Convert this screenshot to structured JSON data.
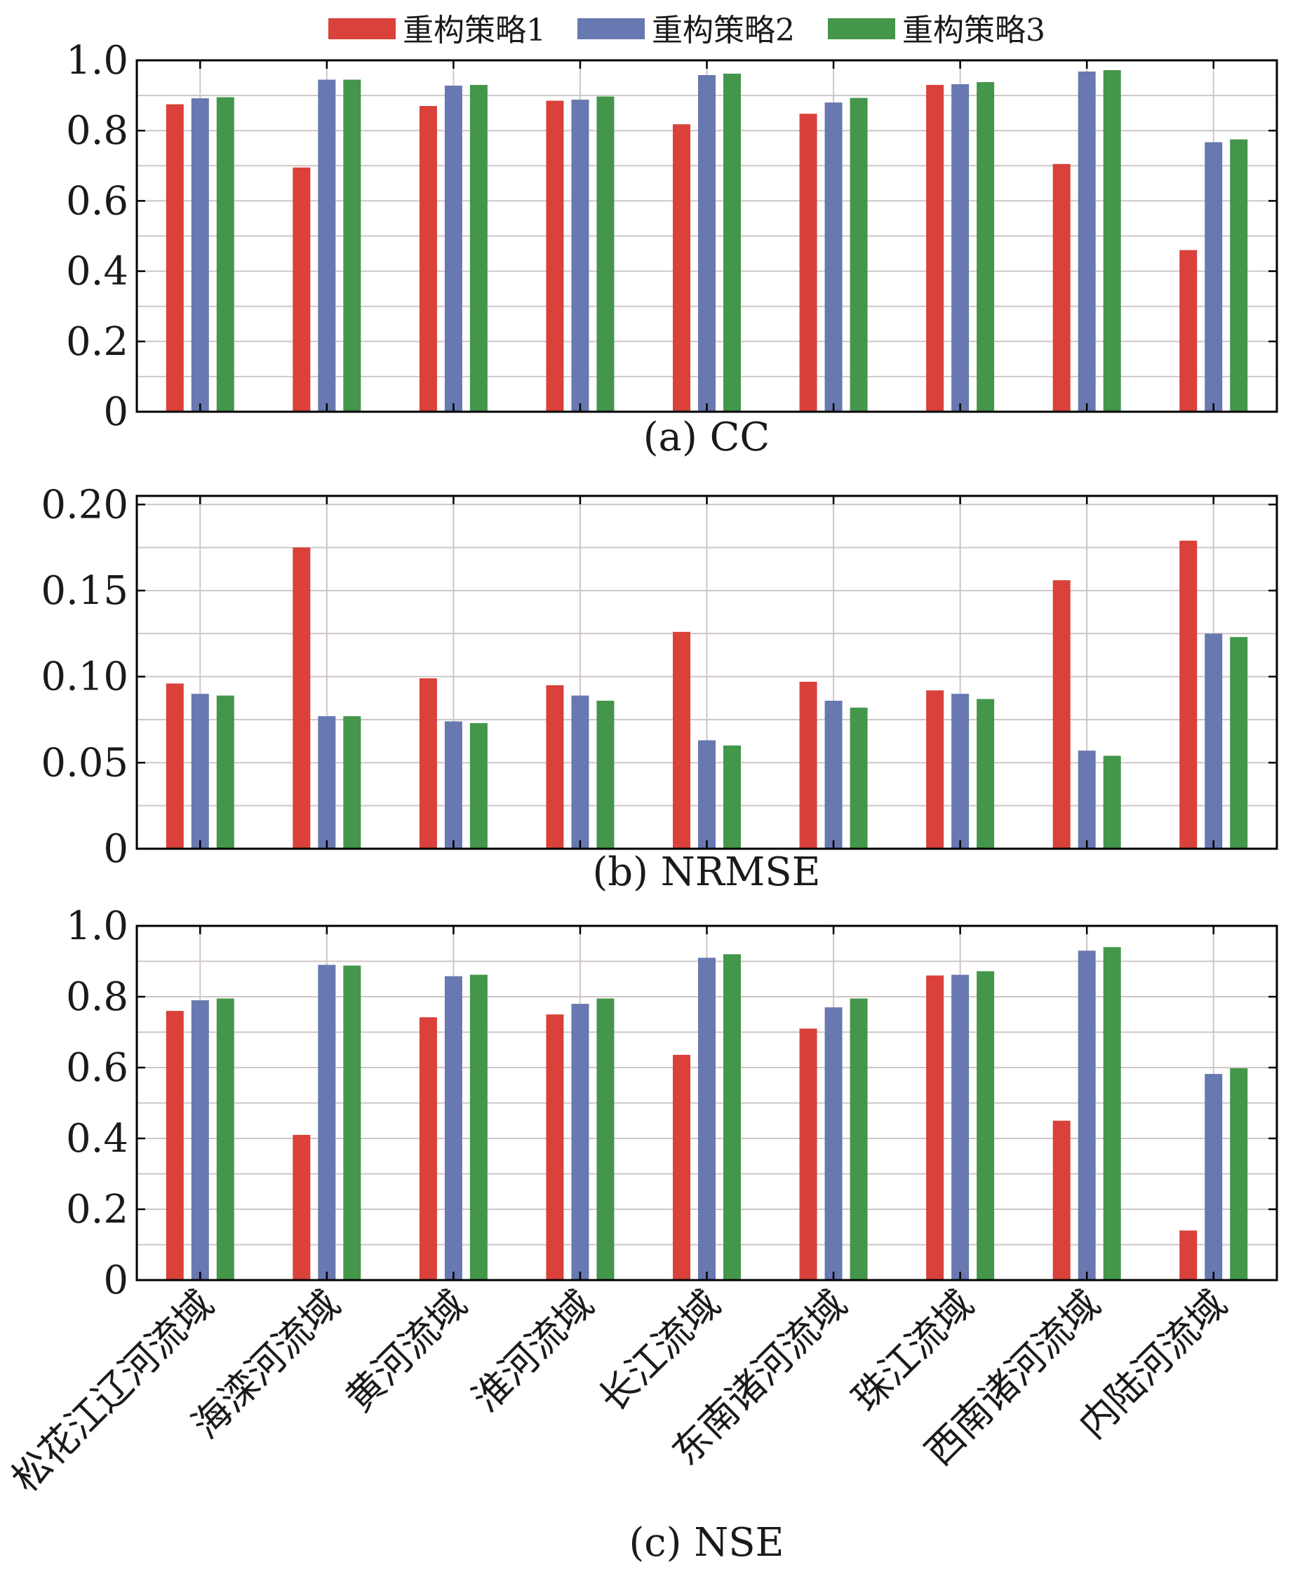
{
  "legend": {
    "items": [
      {
        "name": "重构策略1",
        "color": "#d9413a"
      },
      {
        "name": "重构策略2",
        "color": "#6878b0"
      },
      {
        "name": "重构策略3",
        "color": "#43964a"
      }
    ]
  },
  "chart_data": [
    {
      "type": "bar",
      "title": "(a) CC",
      "xlabel": "",
      "ylabel": "",
      "ylim": [
        0,
        1.0
      ],
      "yticks": [
        0,
        0.2,
        0.4,
        0.6,
        0.8,
        1.0
      ],
      "ytick_labels": [
        "0",
        "0.2",
        "0.4",
        "0.6",
        "0.8",
        "1.0"
      ],
      "grid": true,
      "categories": [
        "松花江辽河流域",
        "海滦河流域",
        "黄河流域",
        "淮河流域",
        "长江流域",
        "东南诸河流域",
        "珠江流域",
        "西南诸河流域",
        "内陆河流域"
      ],
      "series": [
        {
          "name": "重构策略1",
          "values": [
            0.875,
            0.695,
            0.87,
            0.885,
            0.818,
            0.848,
            0.93,
            0.705,
            0.46
          ]
        },
        {
          "name": "重构策略2",
          "values": [
            0.892,
            0.945,
            0.928,
            0.888,
            0.958,
            0.88,
            0.932,
            0.968,
            0.767
          ]
        },
        {
          "name": "重构策略3",
          "values": [
            0.895,
            0.945,
            0.93,
            0.897,
            0.962,
            0.893,
            0.938,
            0.972,
            0.775
          ]
        }
      ]
    },
    {
      "type": "bar",
      "title": "(b) NRMSE",
      "xlabel": "",
      "ylabel": "",
      "ylim": [
        0,
        0.205
      ],
      "yticks": [
        0,
        0.05,
        0.1,
        0.15,
        0.2
      ],
      "ytick_labels": [
        "0",
        "0.05",
        "0.10",
        "0.15",
        "0.20"
      ],
      "grid": true,
      "categories": [
        "松花江辽河流域",
        "海滦河流域",
        "黄河流域",
        "淮河流域",
        "长江流域",
        "东南诸河流域",
        "珠江流域",
        "西南诸河流域",
        "内陆河流域"
      ],
      "series": [
        {
          "name": "重构策略1",
          "values": [
            0.096,
            0.175,
            0.099,
            0.095,
            0.126,
            0.097,
            0.092,
            0.156,
            0.179
          ]
        },
        {
          "name": "重构策略2",
          "values": [
            0.09,
            0.077,
            0.074,
            0.089,
            0.063,
            0.086,
            0.09,
            0.057,
            0.125
          ]
        },
        {
          "name": "重构策略3",
          "values": [
            0.089,
            0.077,
            0.073,
            0.086,
            0.06,
            0.082,
            0.087,
            0.054,
            0.123
          ]
        }
      ]
    },
    {
      "type": "bar",
      "title": "(c) NSE",
      "xlabel": "",
      "ylabel": "",
      "ylim": [
        0,
        1.0
      ],
      "yticks": [
        0,
        0.2,
        0.4,
        0.6,
        0.8,
        1.0
      ],
      "ytick_labels": [
        "0",
        "0.2",
        "0.4",
        "0.6",
        "0.8",
        "1.0"
      ],
      "grid": true,
      "categories": [
        "松花江辽河流域",
        "海滦河流域",
        "黄河流域",
        "淮河流域",
        "长江流域",
        "东南诸河流域",
        "珠江流域",
        "西南诸河流域",
        "内陆河流域"
      ],
      "series": [
        {
          "name": "重构策略1",
          "values": [
            0.76,
            0.41,
            0.742,
            0.75,
            0.636,
            0.71,
            0.86,
            0.45,
            0.14
          ]
        },
        {
          "name": "重构策略2",
          "values": [
            0.79,
            0.89,
            0.858,
            0.78,
            0.91,
            0.77,
            0.862,
            0.93,
            0.582
          ]
        },
        {
          "name": "重构策略3",
          "values": [
            0.795,
            0.888,
            0.862,
            0.795,
            0.92,
            0.795,
            0.872,
            0.94,
            0.598
          ]
        }
      ]
    }
  ]
}
